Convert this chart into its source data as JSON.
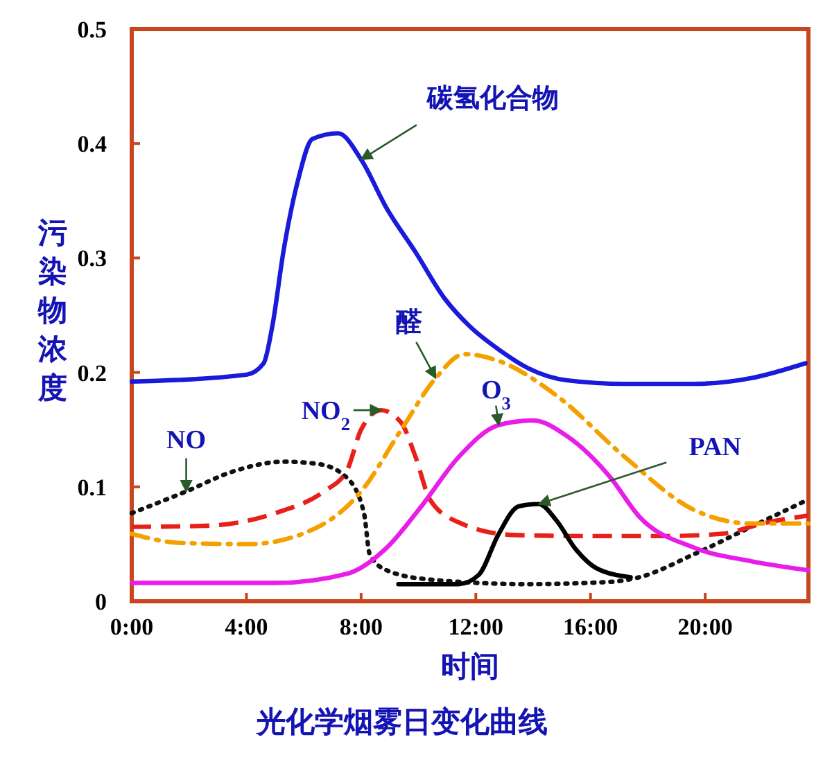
{
  "chart_data": {
    "type": "line",
    "title": "光化学烟雾日变化曲线",
    "xlabel": "时间",
    "ylabel": "污染物浓度",
    "xlim": [
      0,
      23.6
    ],
    "xticks": [
      {
        "value": 0,
        "label": "0:00"
      },
      {
        "value": 4,
        "label": "4:00"
      },
      {
        "value": 8,
        "label": "8:00"
      },
      {
        "value": 12,
        "label": "12:00"
      },
      {
        "value": 16,
        "label": "16:00"
      },
      {
        "value": 20,
        "label": "20:00"
      }
    ],
    "ylim": [
      0,
      0.5
    ],
    "yticks": [
      0,
      0.1,
      0.2,
      0.3,
      0.4,
      0.5
    ],
    "grid": false,
    "series": [
      {
        "name": "碳氢化合物",
        "color": "#1a1adb",
        "line_style": "solid",
        "x": [
          0,
          4,
          4.6,
          4.9,
          5.3,
          5.8,
          6.3,
          7.2,
          8,
          8.9,
          9.9,
          10.9,
          11.8,
          12.8,
          13.8,
          15.2,
          17.2,
          19.6,
          21.6,
          23.5
        ],
        "values": [
          0.192,
          0.198,
          0.208,
          0.24,
          0.307,
          0.368,
          0.404,
          0.409,
          0.386,
          0.343,
          0.305,
          0.265,
          0.24,
          0.22,
          0.204,
          0.193,
          0.19,
          0.19,
          0.195,
          0.208
        ]
      },
      {
        "name": "NO",
        "color": "#111111",
        "line_style": "dotted",
        "x": [
          0,
          1.9,
          3.6,
          5.3,
          6.5,
          7.5,
          8.1,
          8.3,
          8.9,
          10.4,
          13.8,
          16.7,
          17.7,
          19.6,
          21.6,
          23.6
        ],
        "values": [
          0.077,
          0.096,
          0.114,
          0.122,
          0.12,
          0.108,
          0.077,
          0.041,
          0.027,
          0.019,
          0.015,
          0.017,
          0.021,
          0.041,
          0.065,
          0.089
        ]
      },
      {
        "name": "NO$_{2}$",
        "color": "#e8201a",
        "line_style": "dashed",
        "x": [
          0,
          2.6,
          5,
          6.7,
          7.5,
          8,
          8.7,
          9.4,
          9.9,
          10.4,
          11.4,
          13.3,
          15.7,
          18.6,
          20.6,
          22,
          23.6
        ],
        "values": [
          0.065,
          0.066,
          0.077,
          0.096,
          0.114,
          0.15,
          0.167,
          0.156,
          0.126,
          0.089,
          0.069,
          0.058,
          0.057,
          0.057,
          0.059,
          0.068,
          0.075
        ]
      },
      {
        "name": "醛",
        "color": "#f5a000",
        "line_style": "dashdot",
        "x": [
          0,
          1.7,
          4.1,
          6.5,
          8,
          9.4,
          10.6,
          11.6,
          12.8,
          14.8,
          17.2,
          19.6,
          21.6,
          23.6
        ],
        "values": [
          0.059,
          0.051,
          0.05,
          0.065,
          0.096,
          0.15,
          0.195,
          0.216,
          0.21,
          0.18,
          0.126,
          0.08,
          0.068,
          0.068
        ]
      },
      {
        "name": "O$_{3}$",
        "color": "#e81ee8",
        "line_style": "solid",
        "x": [
          0,
          5,
          7.5,
          8.9,
          10.1,
          11.4,
          12.8,
          14,
          15.2,
          16.7,
          17.7,
          19.6,
          21.6,
          23.6
        ],
        "values": [
          0.016,
          0.016,
          0.024,
          0.047,
          0.083,
          0.126,
          0.154,
          0.158,
          0.144,
          0.108,
          0.074,
          0.047,
          0.035,
          0.027
        ]
      },
      {
        "name": "PAN",
        "color": "#000000",
        "line_style": "solid",
        "x": [
          9.3,
          11.4,
          12.1,
          12.8,
          13.5,
          14.2,
          14.8,
          15.5,
          16.2,
          17.4
        ],
        "values": [
          0.015,
          0.015,
          0.023,
          0.059,
          0.083,
          0.085,
          0.071,
          0.045,
          0.029,
          0.021
        ]
      }
    ]
  }
}
